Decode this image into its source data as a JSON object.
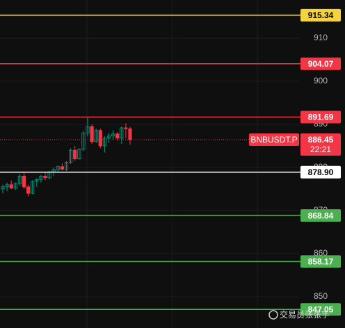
{
  "chart_data": {
    "type": "candlestick",
    "symbol": "BNBUSDT.P",
    "countdown": "22:21",
    "last_price": 886.45,
    "last_price_color": "#f23645",
    "ylim": [
      842.74,
      918.87
    ],
    "yticks": [
      850,
      860,
      870,
      880,
      890,
      900,
      910
    ],
    "grid": true,
    "up_color": "#089981",
    "down_color": "#f23645",
    "open": [
      875,
      875.5,
      876,
      875.2,
      876.3,
      878,
      875.5,
      874,
      876.8,
      877.2,
      878,
      877.6,
      879,
      879.5,
      880.2,
      879.6,
      881.2,
      884,
      882,
      884.2,
      888,
      889.5,
      886,
      888.6,
      885,
      886.8,
      887.3,
      887.8,
      886.8,
      889.2,
      889
    ],
    "high": [
      876,
      876.5,
      877,
      876.5,
      878.5,
      878.8,
      876,
      877,
      877.5,
      878.3,
      879,
      879.2,
      880,
      880.5,
      881,
      881.5,
      884.5,
      885,
      884.5,
      888.5,
      891.7,
      890,
      889,
      889,
      887.2,
      888,
      888.6,
      888.2,
      889.5,
      890.3,
      889.5
    ],
    "low": [
      874,
      874.5,
      875,
      874.8,
      875.8,
      875,
      873.3,
      873.8,
      875.5,
      876.5,
      877,
      877.2,
      878,
      879,
      879.3,
      879.2,
      880.8,
      881.5,
      881.8,
      883.8,
      887.2,
      885.5,
      885.7,
      884.5,
      883.5,
      885.8,
      886.5,
      886.2,
      885.5,
      886.8,
      885.3
    ],
    "close": [
      875.5,
      876,
      875.2,
      876.3,
      878,
      875.5,
      874,
      876.8,
      877.2,
      878,
      877.6,
      879,
      879.5,
      880.2,
      879.6,
      881.2,
      884,
      882,
      884.2,
      888,
      889.5,
      886,
      888.6,
      885,
      886.8,
      887.3,
      887.8,
      886.8,
      889.2,
      889,
      886.45
    ],
    "levels": [
      {
        "value": 915.34,
        "color": "#f5d33f",
        "text_color": "#000000"
      },
      {
        "value": 904.07,
        "color": "#f23645",
        "text_color": "#ffffff"
      },
      {
        "value": 891.69,
        "color": "#f23645",
        "text_color": "#ffffff"
      },
      {
        "value": {
          "value": 878.9,
          "label": "878.90"
        },
        "color": "#ffffff",
        "text_color": "#000000"
      },
      {
        "value": 868.84,
        "color": "#4caf50",
        "text_color": "#ffffff"
      },
      {
        "value": 858.17,
        "color": "#4caf50",
        "text_color": "#ffffff"
      },
      {
        "value": 847.05,
        "color": "#4caf50",
        "text_color": "#ffffff"
      }
    ],
    "watermark": "交易员张张手"
  }
}
